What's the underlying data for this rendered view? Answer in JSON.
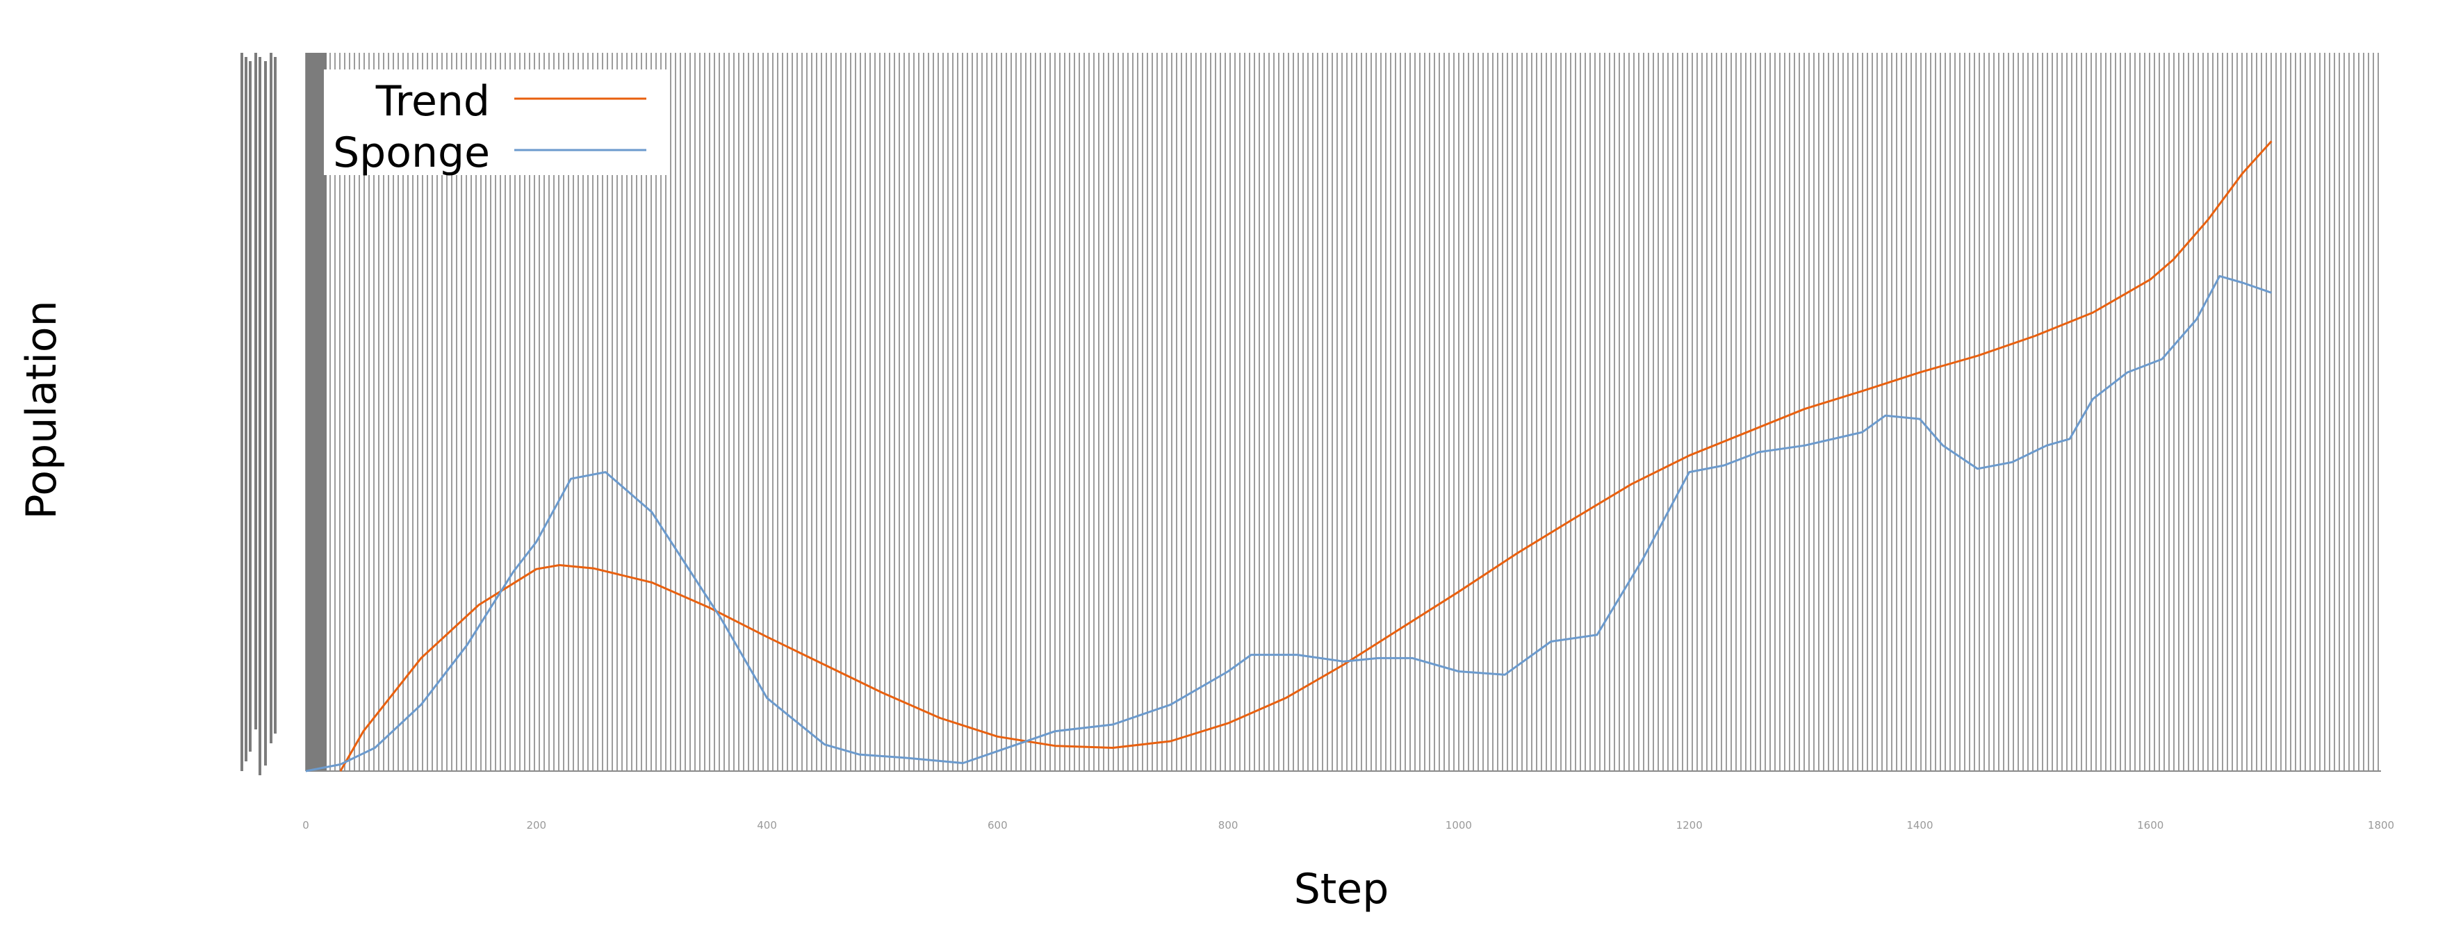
{
  "chart_data": {
    "type": "line",
    "xlabel": "Step",
    "ylabel": "Population",
    "xlim": [
      0,
      1800
    ],
    "ylim": [
      0,
      1000
    ],
    "x_ticks": [
      "0",
      "200",
      "400",
      "600",
      "800",
      "1000",
      "1200",
      "1400",
      "1600",
      "1800"
    ],
    "grid": "dense vertical gridlines",
    "legend_position": "top-left",
    "series": [
      {
        "name": "Trend",
        "color": "#e8600f",
        "x": [
          30,
          50,
          100,
          150,
          200,
          220,
          250,
          300,
          350,
          400,
          450,
          500,
          550,
          600,
          650,
          700,
          750,
          800,
          850,
          900,
          950,
          1000,
          1050,
          1100,
          1150,
          1200,
          1250,
          1300,
          1350,
          1400,
          1450,
          1500,
          1550,
          1600,
          1620,
          1650,
          1680,
          1705
        ],
        "values": [
          0,
          60,
          170,
          250,
          304,
          310,
          305,
          284,
          246,
          202,
          160,
          118,
          80,
          52,
          38,
          35,
          45,
          72,
          110,
          160,
          215,
          270,
          327,
          380,
          432,
          475,
          510,
          545,
          572,
          600,
          625,
          655,
          690,
          740,
          770,
          830,
          900,
          948
        ]
      },
      {
        "name": "Sponge",
        "color": "#6b9acd",
        "x": [
          0,
          30,
          60,
          100,
          140,
          180,
          200,
          230,
          260,
          280,
          300,
          330,
          360,
          400,
          450,
          480,
          520,
          570,
          600,
          650,
          700,
          750,
          800,
          820,
          860,
          900,
          930,
          960,
          1000,
          1040,
          1080,
          1120,
          1160,
          1200,
          1230,
          1260,
          1300,
          1350,
          1370,
          1400,
          1420,
          1450,
          1480,
          1510,
          1530,
          1550,
          1580,
          1610,
          1640,
          1660,
          1680,
          1705
        ],
        "values": [
          0,
          10,
          35,
          100,
          190,
          300,
          345,
          440,
          450,
          420,
          390,
          310,
          230,
          110,
          40,
          25,
          20,
          12,
          30,
          60,
          70,
          100,
          150,
          175,
          175,
          165,
          170,
          170,
          150,
          145,
          195,
          205,
          320,
          450,
          460,
          480,
          490,
          510,
          535,
          530,
          490,
          455,
          465,
          490,
          500,
          560,
          600,
          620,
          680,
          745,
          735,
          720
        ]
      }
    ]
  }
}
